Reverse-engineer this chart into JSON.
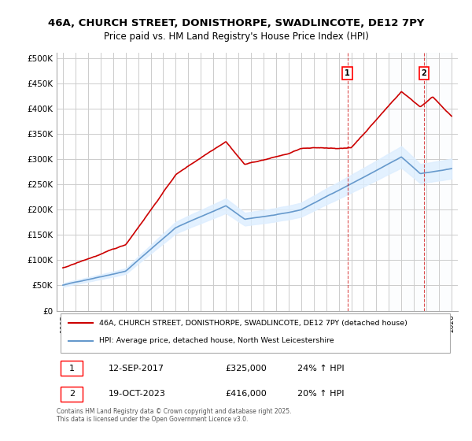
{
  "title_line1": "46A, CHURCH STREET, DONISTHORPE, SWADLINCOTE, DE12 7PY",
  "title_line2": "Price paid vs. HM Land Registry's House Price Index (HPI)",
  "ylabel_ticks": [
    "£0",
    "£50K",
    "£100K",
    "£150K",
    "£200K",
    "£250K",
    "£300K",
    "£350K",
    "£400K",
    "£450K",
    "£500K"
  ],
  "ytick_values": [
    0,
    50000,
    100000,
    150000,
    200000,
    250000,
    300000,
    350000,
    400000,
    450000,
    500000
  ],
  "x_start_year": 1995,
  "x_end_year": 2026,
  "red_color": "#cc0000",
  "blue_color": "#6699cc",
  "shaded_color": "#ddeeff",
  "bg_color": "#ffffff",
  "grid_color": "#cccccc",
  "marker1_year": 2017.7,
  "marker2_year": 2023.8,
  "marker1_label": "1",
  "marker2_label": "2",
  "marker1_price": 325000,
  "marker2_price": 416000,
  "legend_red": "46A, CHURCH STREET, DONISTHORPE, SWADLINCOTE, DE12 7PY (detached house)",
  "legend_blue": "HPI: Average price, detached house, North West Leicestershire",
  "sale1_date": "12-SEP-2017",
  "sale1_price": "£325,000",
  "sale1_hpi": "24% ↑ HPI",
  "sale2_date": "19-OCT-2023",
  "sale2_price": "£416,000",
  "sale2_hpi": "20% ↑ HPI",
  "footnote": "Contains HM Land Registry data © Crown copyright and database right 2025.\nThis data is licensed under the Open Government Licence v3.0.",
  "hpi_seed": 42,
  "stripe_color": "#e8f0f8"
}
